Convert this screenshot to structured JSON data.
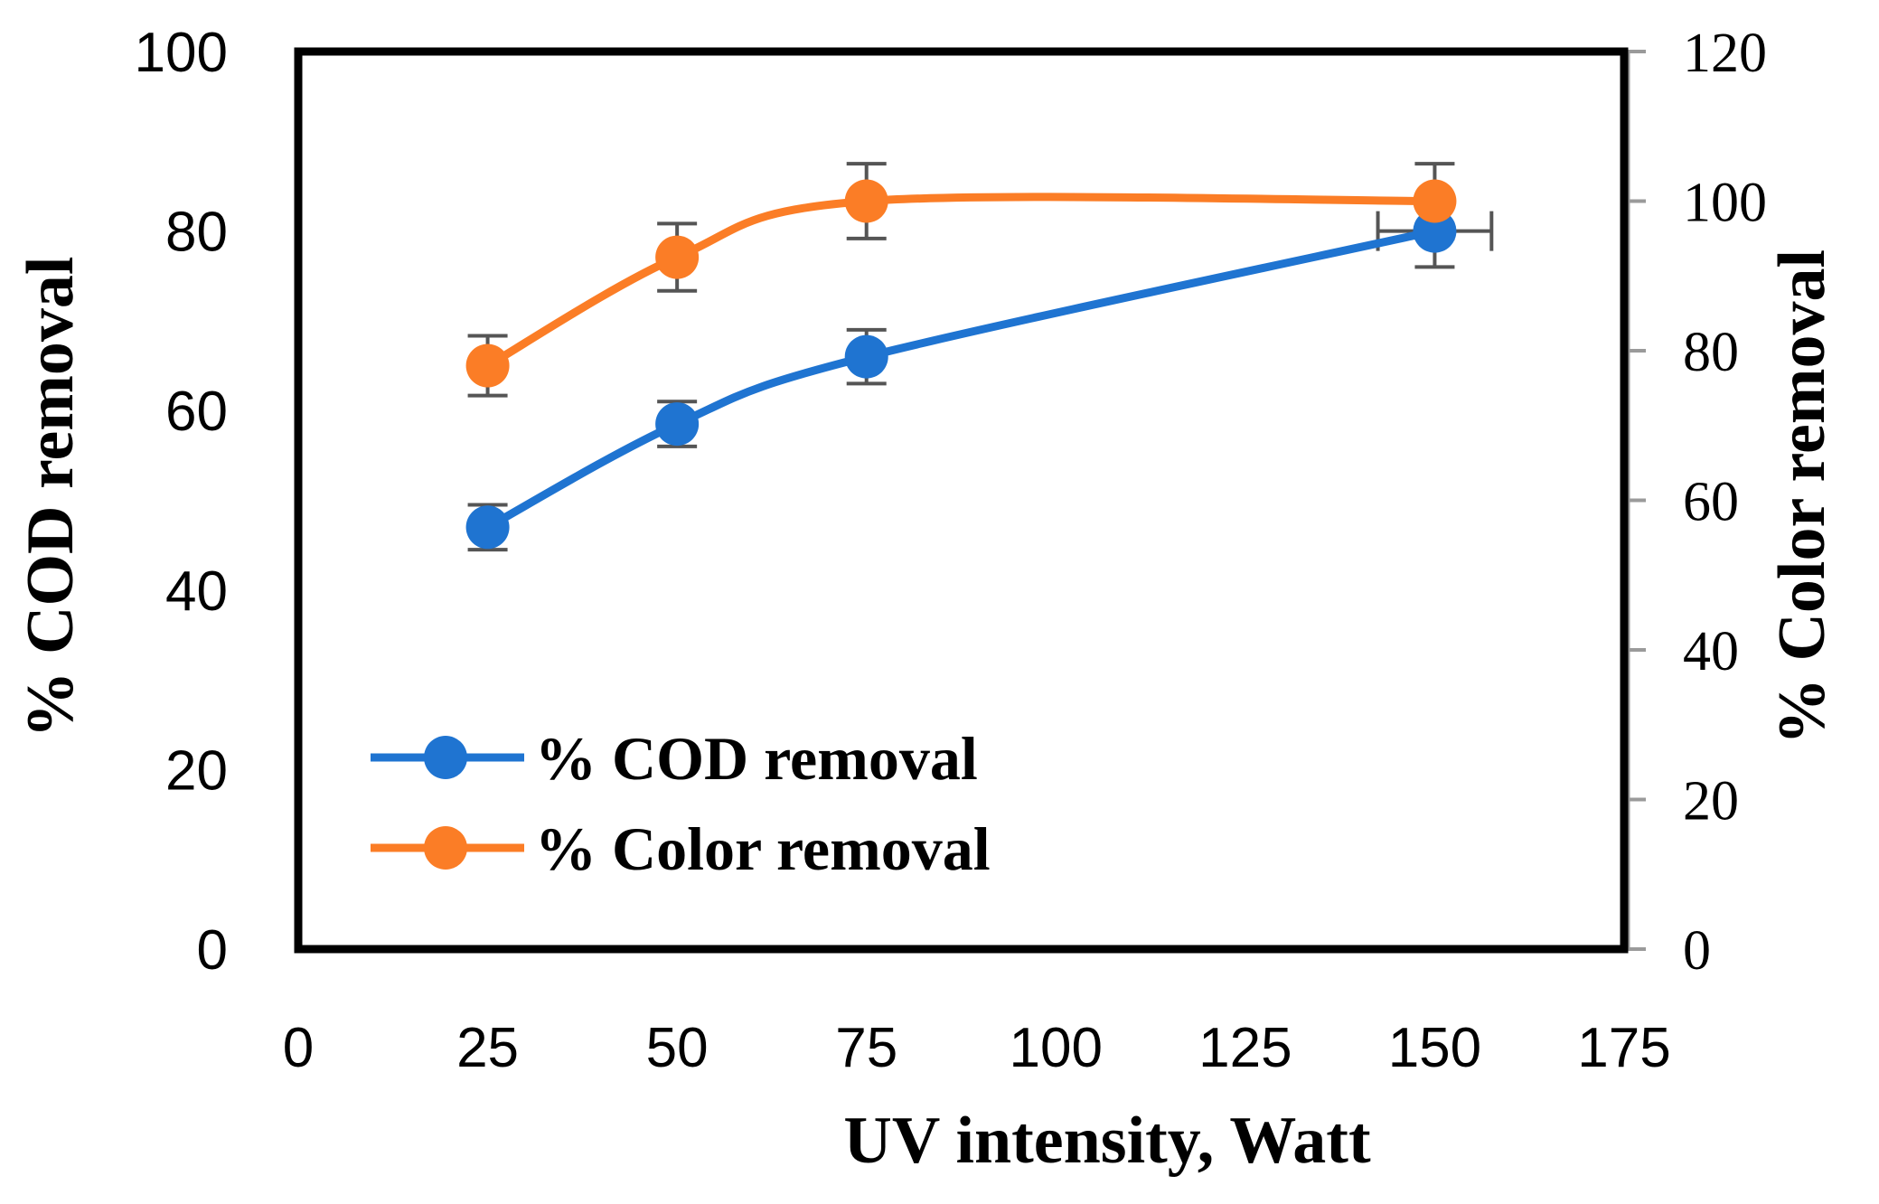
{
  "chart_data": {
    "type": "line",
    "title": "",
    "xlabel": "UV intensity, Watt",
    "ylabel": "% COD removal",
    "y2label": "% Color removal",
    "xlim": [
      0,
      175
    ],
    "ylim": [
      0,
      100
    ],
    "y2lim": [
      0,
      120
    ],
    "xticks": [
      "0",
      "25",
      "50",
      "75",
      "100",
      "125",
      "150",
      "175"
    ],
    "yticks": [
      "0",
      "20",
      "40",
      "60",
      "80",
      "100"
    ],
    "y2ticks": [
      "0",
      "20",
      "40",
      "60",
      "80",
      "100",
      "120"
    ],
    "legend_position": "bottom-left",
    "series": [
      {
        "name": "% COD removal",
        "axis": "left",
        "color": "#1f74d1",
        "x": [
          25,
          50,
          75,
          150
        ],
        "values": [
          47,
          58.5,
          66,
          80
        ],
        "y_error": [
          2.5,
          2.5,
          3,
          4
        ],
        "x_error": [
          0,
          0,
          0,
          7.5
        ]
      },
      {
        "name": "% Color removal",
        "axis": "right",
        "color": "#fb7d26",
        "x": [
          25,
          50,
          75,
          150
        ],
        "values": [
          78,
          92.5,
          100,
          100
        ],
        "y_error": [
          4,
          4.5,
          5,
          5
        ],
        "x_error": [
          0,
          0,
          0,
          0
        ]
      }
    ]
  }
}
